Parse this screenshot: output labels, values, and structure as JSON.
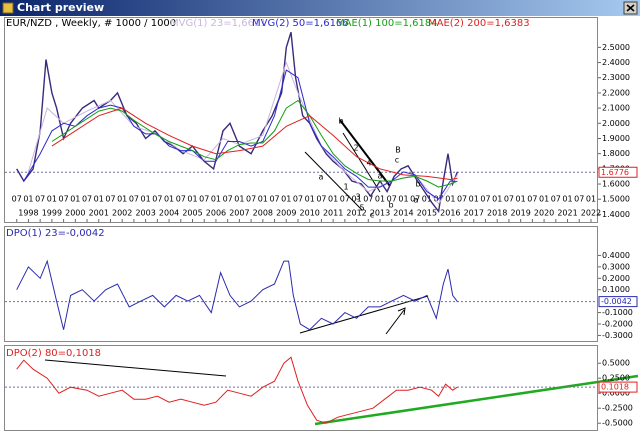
{
  "window": {
    "title": "Chart preview"
  },
  "chart_data": [
    {
      "type": "line",
      "title": "EUR/NZD , Weekly, # 1000 / 1000",
      "xlim": [
        1997,
        2022.3
      ],
      "ylim": [
        1.35,
        2.7
      ],
      "yticks": [
        {
          "value": 2.5,
          "label": "2.5000"
        },
        {
          "value": 2.4,
          "label": "2.4000"
        },
        {
          "value": 2.3,
          "label": "2.3000"
        },
        {
          "value": 2.2,
          "label": "2.2000"
        },
        {
          "value": 2.1,
          "label": "2.1000"
        },
        {
          "value": 2.0,
          "label": "2.0000"
        },
        {
          "value": 1.9,
          "label": "1.9000"
        },
        {
          "value": 1.8,
          "label": "1.8000"
        },
        {
          "value": 1.7,
          "label": "1.7000"
        },
        {
          "value": 1.6,
          "label": "1.6000"
        },
        {
          "value": 1.5,
          "label": "1.5000"
        },
        {
          "value": 1.4,
          "label": "1.4000"
        }
      ],
      "xticks": [
        {
          "value": 1997.5,
          "label": "07"
        },
        {
          "value": 1998,
          "label": "01"
        },
        {
          "value": 1998.5,
          "label": "07"
        },
        {
          "value": 1999,
          "label": "01"
        },
        {
          "value": 1999.5,
          "label": "07"
        },
        {
          "value": 2000,
          "label": "01"
        },
        {
          "value": 2000.5,
          "label": "07"
        },
        {
          "value": 2001,
          "label": "01"
        },
        {
          "value": 2001.5,
          "label": "07"
        },
        {
          "value": 2002,
          "label": "01"
        },
        {
          "value": 2002.5,
          "label": "07"
        },
        {
          "value": 2003,
          "label": "01"
        },
        {
          "value": 2003.5,
          "label": "07"
        },
        {
          "value": 2004,
          "label": "01"
        },
        {
          "value": 2004.5,
          "label": "07"
        },
        {
          "value": 2005,
          "label": "01"
        },
        {
          "value": 2005.5,
          "label": "07"
        },
        {
          "value": 2006,
          "label": "01"
        },
        {
          "value": 2006.5,
          "label": "07"
        },
        {
          "value": 2007,
          "label": "01"
        },
        {
          "value": 2007.5,
          "label": "07"
        },
        {
          "value": 2008,
          "label": "01"
        },
        {
          "value": 2008.5,
          "label": "07"
        },
        {
          "value": 2009,
          "label": "01"
        },
        {
          "value": 2009.5,
          "label": "07"
        },
        {
          "value": 2010,
          "label": "01"
        },
        {
          "value": 2010.5,
          "label": "07"
        },
        {
          "value": 2011,
          "label": "01"
        },
        {
          "value": 2011.5,
          "label": "07"
        },
        {
          "value": 2012,
          "label": "01"
        },
        {
          "value": 2012.5,
          "label": "07"
        },
        {
          "value": 2013,
          "label": "01"
        },
        {
          "value": 2013.5,
          "label": "07"
        },
        {
          "value": 2014,
          "label": "01"
        },
        {
          "value": 2014.5,
          "label": "07"
        },
        {
          "value": 2015,
          "label": "01"
        },
        {
          "value": 2015.5,
          "label": "07"
        },
        {
          "value": 2016,
          "label": "01"
        },
        {
          "value": 2016.5,
          "label": "07"
        },
        {
          "value": 2017,
          "label": "01"
        },
        {
          "value": 2017.5,
          "label": "07"
        },
        {
          "value": 2018,
          "label": "01"
        },
        {
          "value": 2018.5,
          "label": "07"
        },
        {
          "value": 2019,
          "label": "01"
        },
        {
          "value": 2019.5,
          "label": "07"
        },
        {
          "value": 2020,
          "label": "01"
        },
        {
          "value": 2020.5,
          "label": "07"
        },
        {
          "value": 2021,
          "label": "01"
        },
        {
          "value": 2021.5,
          "label": "07"
        },
        {
          "value": 2022,
          "label": "01"
        }
      ],
      "years": [
        1998,
        1999,
        2000,
        2001,
        2002,
        2003,
        2004,
        2005,
        2006,
        2007,
        2008,
        2009,
        2010,
        2011,
        2012,
        2013,
        2014,
        2015,
        2016,
        2017,
        2018,
        2019,
        2020,
        2021,
        2022
      ],
      "last": {
        "value": 1.6776,
        "label": "1.6776"
      },
      "series": [
        {
          "name": "price",
          "color": "#3b2a7a",
          "x": [
            1997.5,
            1997.8,
            1998.2,
            1998.5,
            1998.75,
            1999.0,
            1999.2,
            1999.5,
            1999.8,
            2000.3,
            2000.8,
            2001.0,
            2001.5,
            2001.8,
            2002.2,
            2002.6,
            2003.0,
            2003.4,
            2003.8,
            2004.2,
            2004.6,
            2005.0,
            2005.5,
            2005.9,
            2006.3,
            2006.6,
            2007.0,
            2007.5,
            2008.0,
            2008.4,
            2008.8,
            2009.0,
            2009.2,
            2009.4,
            2009.7,
            2010.0,
            2010.3,
            2010.7,
            2011.0,
            2011.4,
            2011.8,
            2012.2,
            2012.6,
            2013.0,
            2013.3,
            2013.6,
            2013.9,
            2014.2,
            2014.6,
            2014.9,
            2015.2,
            2015.5,
            2015.7,
            2015.9,
            2016.1,
            2016.3
          ],
          "values": [
            1.7,
            1.62,
            1.7,
            1.95,
            2.42,
            2.2,
            2.1,
            1.9,
            2.0,
            2.1,
            2.15,
            2.1,
            2.15,
            2.2,
            2.05,
            2.0,
            1.9,
            1.95,
            1.88,
            1.85,
            1.8,
            1.85,
            1.75,
            1.7,
            1.95,
            2.0,
            1.85,
            1.8,
            1.95,
            2.05,
            2.2,
            2.5,
            2.6,
            2.3,
            2.05,
            2.0,
            1.9,
            1.8,
            1.75,
            1.7,
            1.62,
            1.6,
            1.52,
            1.62,
            1.55,
            1.65,
            1.7,
            1.72,
            1.62,
            1.55,
            1.48,
            1.42,
            1.62,
            1.8,
            1.6,
            1.68
          ]
        },
        {
          "name": "MVG(1) 23=1,6611",
          "color": "#c9b6dc",
          "x": [
            1998.0,
            1998.8,
            1999.5,
            2000.5,
            2001.5,
            2002.5,
            2003.5,
            2004.5,
            2005.5,
            2006.3,
            2007.0,
            2008.0,
            2009.0,
            2009.5,
            2010.5,
            2011.5,
            2012.5,
            2013.5,
            2014.5,
            2015.5,
            2016.3
          ],
          "values": [
            1.68,
            2.1,
            2.0,
            2.08,
            2.15,
            1.98,
            1.93,
            1.82,
            1.76,
            1.9,
            1.86,
            1.92,
            2.4,
            2.2,
            1.85,
            1.68,
            1.55,
            1.62,
            1.66,
            1.47,
            1.6611
          ]
        },
        {
          "name": "MVG(2) 50=1,6166",
          "color": "#2a2ad0",
          "x": [
            1997.8,
            1998.5,
            1999.0,
            1999.5,
            2000.0,
            2000.5,
            2001.0,
            2001.5,
            2002.0,
            2002.5,
            2003.0,
            2003.5,
            2004.0,
            2004.5,
            2005.0,
            2005.5,
            2006.0,
            2006.5,
            2007.0,
            2007.5,
            2008.0,
            2008.5,
            2009.0,
            2009.5,
            2010.0,
            2010.5,
            2011.0,
            2011.5,
            2012.0,
            2012.5,
            2013.0,
            2013.5,
            2014.0,
            2014.5,
            2015.0,
            2015.5,
            2016.0,
            2016.3
          ],
          "values": [
            1.62,
            1.8,
            1.95,
            2.0,
            1.98,
            2.05,
            2.1,
            2.12,
            2.1,
            1.98,
            1.93,
            1.93,
            1.85,
            1.82,
            1.82,
            1.75,
            1.75,
            1.88,
            1.88,
            1.85,
            1.88,
            2.05,
            2.35,
            2.3,
            2.0,
            1.85,
            1.78,
            1.7,
            1.65,
            1.58,
            1.58,
            1.62,
            1.68,
            1.66,
            1.55,
            1.5,
            1.62,
            1.6166
          ]
        },
        {
          "name": "MAE(1) 100=1,6184",
          "color": "#12a012",
          "x": [
            1999.0,
            1999.5,
            2000.0,
            2000.5,
            2001.0,
            2001.5,
            2002.0,
            2002.5,
            2003.0,
            2003.5,
            2004.0,
            2004.5,
            2005.0,
            2005.5,
            2006.0,
            2006.5,
            2007.0,
            2007.5,
            2008.0,
            2008.5,
            2009.0,
            2009.5,
            2010.0,
            2010.5,
            2011.0,
            2011.5,
            2012.0,
            2012.5,
            2013.0,
            2013.5,
            2014.0,
            2014.5,
            2015.0,
            2015.5,
            2016.0,
            2016.3
          ],
          "values": [
            1.88,
            1.93,
            1.98,
            2.03,
            2.08,
            2.1,
            2.08,
            2.02,
            1.97,
            1.92,
            1.88,
            1.85,
            1.82,
            1.78,
            1.76,
            1.82,
            1.86,
            1.87,
            1.87,
            1.95,
            2.1,
            2.15,
            2.05,
            1.92,
            1.8,
            1.72,
            1.67,
            1.63,
            1.62,
            1.62,
            1.64,
            1.65,
            1.62,
            1.58,
            1.6,
            1.6184
          ]
        },
        {
          "name": "MAE(2) 200=1,6383",
          "color": "#e02020",
          "x": [
            1999.0,
            2000.0,
            2001.0,
            2002.0,
            2003.0,
            2004.0,
            2005.0,
            2006.0,
            2007.0,
            2008.0,
            2009.0,
            2010.0,
            2011.0,
            2012.0,
            2013.0,
            2014.0,
            2015.0,
            2016.0,
            2016.3
          ],
          "values": [
            1.85,
            1.95,
            2.05,
            2.1,
            2.0,
            1.92,
            1.85,
            1.8,
            1.82,
            1.85,
            1.98,
            2.05,
            1.92,
            1.78,
            1.7,
            1.66,
            1.65,
            1.63,
            1.6383
          ]
        }
      ],
      "wave_labels": [
        "b",
        "2",
        "4",
        "a",
        "1",
        "3",
        "5",
        "c",
        "b",
        "B",
        "c",
        "a",
        "b",
        "a"
      ]
    },
    {
      "type": "line",
      "title": "DPO(1) 23=-0,0042",
      "xlim": [
        1997,
        2022.3
      ],
      "ylim": [
        -0.34,
        0.43
      ],
      "yticks": [
        {
          "value": 0.4,
          "label": "0.4000"
        },
        {
          "value": 0.3,
          "label": "0.3000"
        },
        {
          "value": 0.2,
          "label": "0.2000"
        },
        {
          "value": 0.1,
          "label": "0.1000"
        },
        {
          "value": -0.1,
          "label": "-0.1000"
        },
        {
          "value": -0.2,
          "label": "-0.2000"
        },
        {
          "value": -0.3,
          "label": "-0.3000"
        }
      ],
      "last": {
        "value": -0.0042,
        "label": "-0.0042"
      },
      "series": [
        {
          "name": "DPO(1) 23=-0,0042",
          "color": "#2a2ab0",
          "x": [
            1997.5,
            1998,
            1998.5,
            1998.8,
            1999.2,
            1999.5,
            1999.8,
            2000.3,
            2000.8,
            2001.3,
            2001.8,
            2002.3,
            2002.8,
            2003.3,
            2003.8,
            2004.3,
            2004.8,
            2005.3,
            2005.8,
            2006.2,
            2006.6,
            2007.0,
            2007.5,
            2008.0,
            2008.5,
            2008.9,
            2009.1,
            2009.3,
            2009.6,
            2010.0,
            2010.5,
            2011.0,
            2011.5,
            2012.0,
            2012.5,
            2013.0,
            2013.5,
            2014.0,
            2014.5,
            2015.0,
            2015.4,
            2015.7,
            2015.9,
            2016.1,
            2016.3
          ],
          "values": [
            0.1,
            0.3,
            0.2,
            0.35,
            0.0,
            -0.25,
            0.05,
            0.1,
            0.0,
            0.1,
            0.15,
            -0.05,
            0.0,
            0.05,
            -0.05,
            0.05,
            0.0,
            0.05,
            -0.1,
            0.25,
            0.05,
            -0.05,
            0.0,
            0.1,
            0.15,
            0.35,
            0.35,
            0.05,
            -0.2,
            -0.25,
            -0.15,
            -0.2,
            -0.1,
            -0.15,
            -0.05,
            -0.05,
            0.0,
            0.05,
            0.0,
            0.05,
            -0.15,
            0.15,
            0.28,
            0.05,
            -0.0042
          ]
        }
      ]
    },
    {
      "type": "line",
      "title": "DPO(2) 80=0,1018",
      "xlim": [
        1997,
        2022.3
      ],
      "ylim": [
        -0.63,
        0.72
      ],
      "yticks": [
        {
          "value": 0.5,
          "label": "0.5000"
        },
        {
          "value": 0.25,
          "label": "0.2500"
        },
        {
          "value": 0,
          "label": "0.0000"
        },
        {
          "value": -0.25,
          "label": "-0.2500"
        },
        {
          "value": -0.5,
          "label": "-0.5000"
        }
      ],
      "last": {
        "value": 0.1018,
        "label": "0.1018"
      },
      "series": [
        {
          "name": "DPO(2) 80=0,1018",
          "color": "#e02020",
          "x": [
            1997.5,
            1997.8,
            1998.2,
            1998.8,
            1999.3,
            1999.8,
            2000.5,
            2001.0,
            2001.5,
            2002.0,
            2002.5,
            2003.0,
            2003.5,
            2004.0,
            2004.5,
            2005.0,
            2005.5,
            2006.0,
            2006.5,
            2007.0,
            2007.5,
            2008.0,
            2008.5,
            2008.9,
            2009.2,
            2009.5,
            2009.9,
            2010.3,
            2010.7,
            2011.2,
            2011.7,
            2012.2,
            2012.7,
            2013.2,
            2013.7,
            2014.2,
            2014.7,
            2015.2,
            2015.5,
            2015.8,
            2016.1,
            2016.3
          ],
          "values": [
            0.4,
            0.55,
            0.4,
            0.25,
            0.0,
            0.1,
            0.05,
            -0.05,
            0.0,
            0.05,
            -0.1,
            -0.1,
            -0.05,
            -0.15,
            -0.1,
            -0.15,
            -0.2,
            -0.15,
            0.05,
            0.0,
            -0.05,
            0.1,
            0.2,
            0.5,
            0.6,
            0.2,
            -0.2,
            -0.45,
            -0.5,
            -0.4,
            -0.35,
            -0.3,
            -0.25,
            -0.1,
            0.05,
            0.05,
            0.1,
            0.05,
            -0.05,
            0.15,
            0.05,
            0.1018
          ]
        }
      ]
    }
  ]
}
